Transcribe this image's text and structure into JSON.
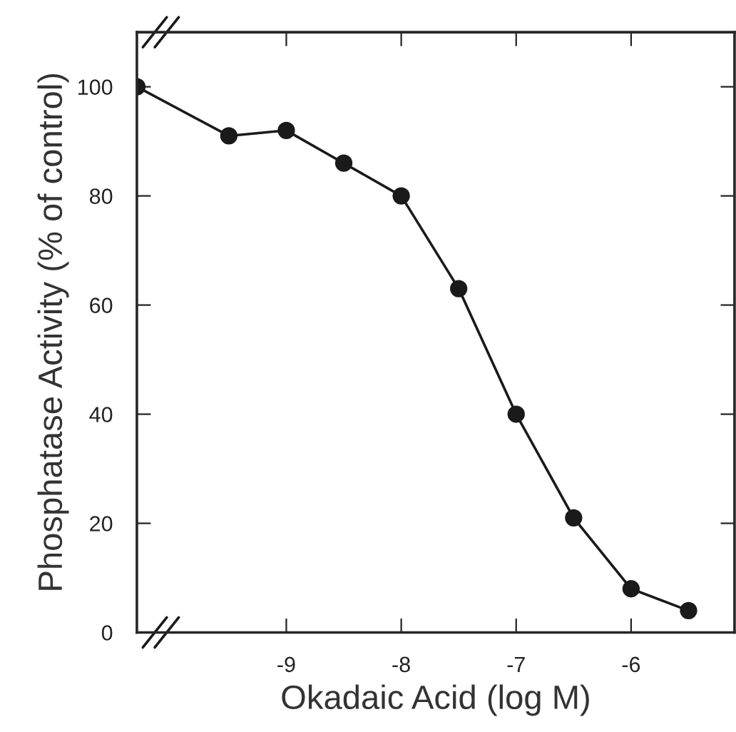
{
  "chart_data": {
    "type": "line",
    "xlabel": "Okadaic Acid (log M)",
    "ylabel": "Phosphatase Activity (% of control)",
    "x": [
      -10.3,
      -9.5,
      -9,
      -8.5,
      -8,
      -7.5,
      -7,
      -6.5,
      -6,
      -5.5
    ],
    "series": [
      {
        "color": "#1a1a1a",
        "values": [
          100,
          91,
          92,
          86,
          80,
          63,
          40,
          21,
          8,
          4
        ]
      }
    ],
    "xlim": [
      -10.3,
      -5.1
    ],
    "ylim": [
      0,
      110
    ],
    "xticks": [
      {
        "value": -9,
        "label": "-9"
      },
      {
        "value": -8,
        "label": "-8"
      },
      {
        "value": -7,
        "label": "-7"
      },
      {
        "value": -6,
        "label": "-6"
      }
    ],
    "yticks": [
      0,
      20,
      40,
      60,
      80,
      100
    ],
    "marker": "circle",
    "line_style": "solid"
  }
}
